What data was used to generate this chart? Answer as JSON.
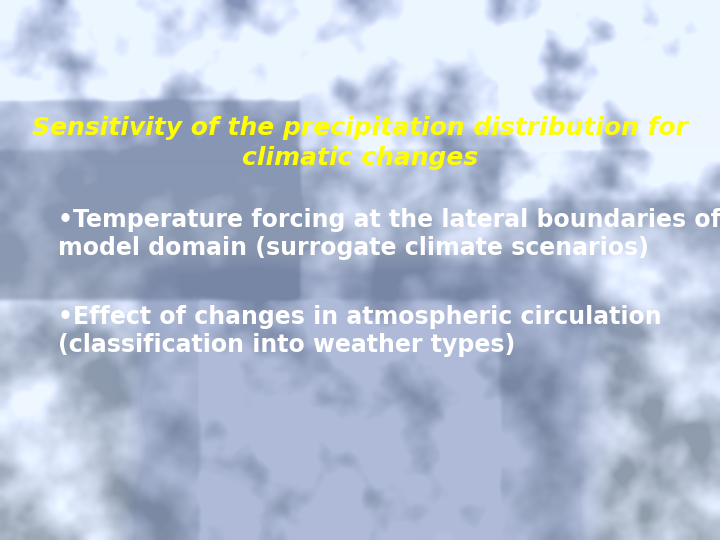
{
  "title_line1": "Sensitivity of the precipitation distribution for",
  "title_line2": "climatic changes",
  "title_color": "#FFFF00",
  "title_fontsize": 18,
  "title_fontstyle": "italic",
  "title_fontweight": "bold",
  "bullet1_line1": "•Temperature forcing at the lateral boundaries of the",
  "bullet1_line2": "model domain (surrogate climate scenarios)",
  "bullet2_line1": "•Effect of changes in atmospheric circulation",
  "bullet2_line2": "(classification into weather types)",
  "bullet_color": "#FFFFFF",
  "bullet_fontsize": 17,
  "bullet_fontweight": "bold",
  "bullet_fontstyle": "normal",
  "figsize": [
    7.2,
    5.4
  ],
  "dpi": 100
}
